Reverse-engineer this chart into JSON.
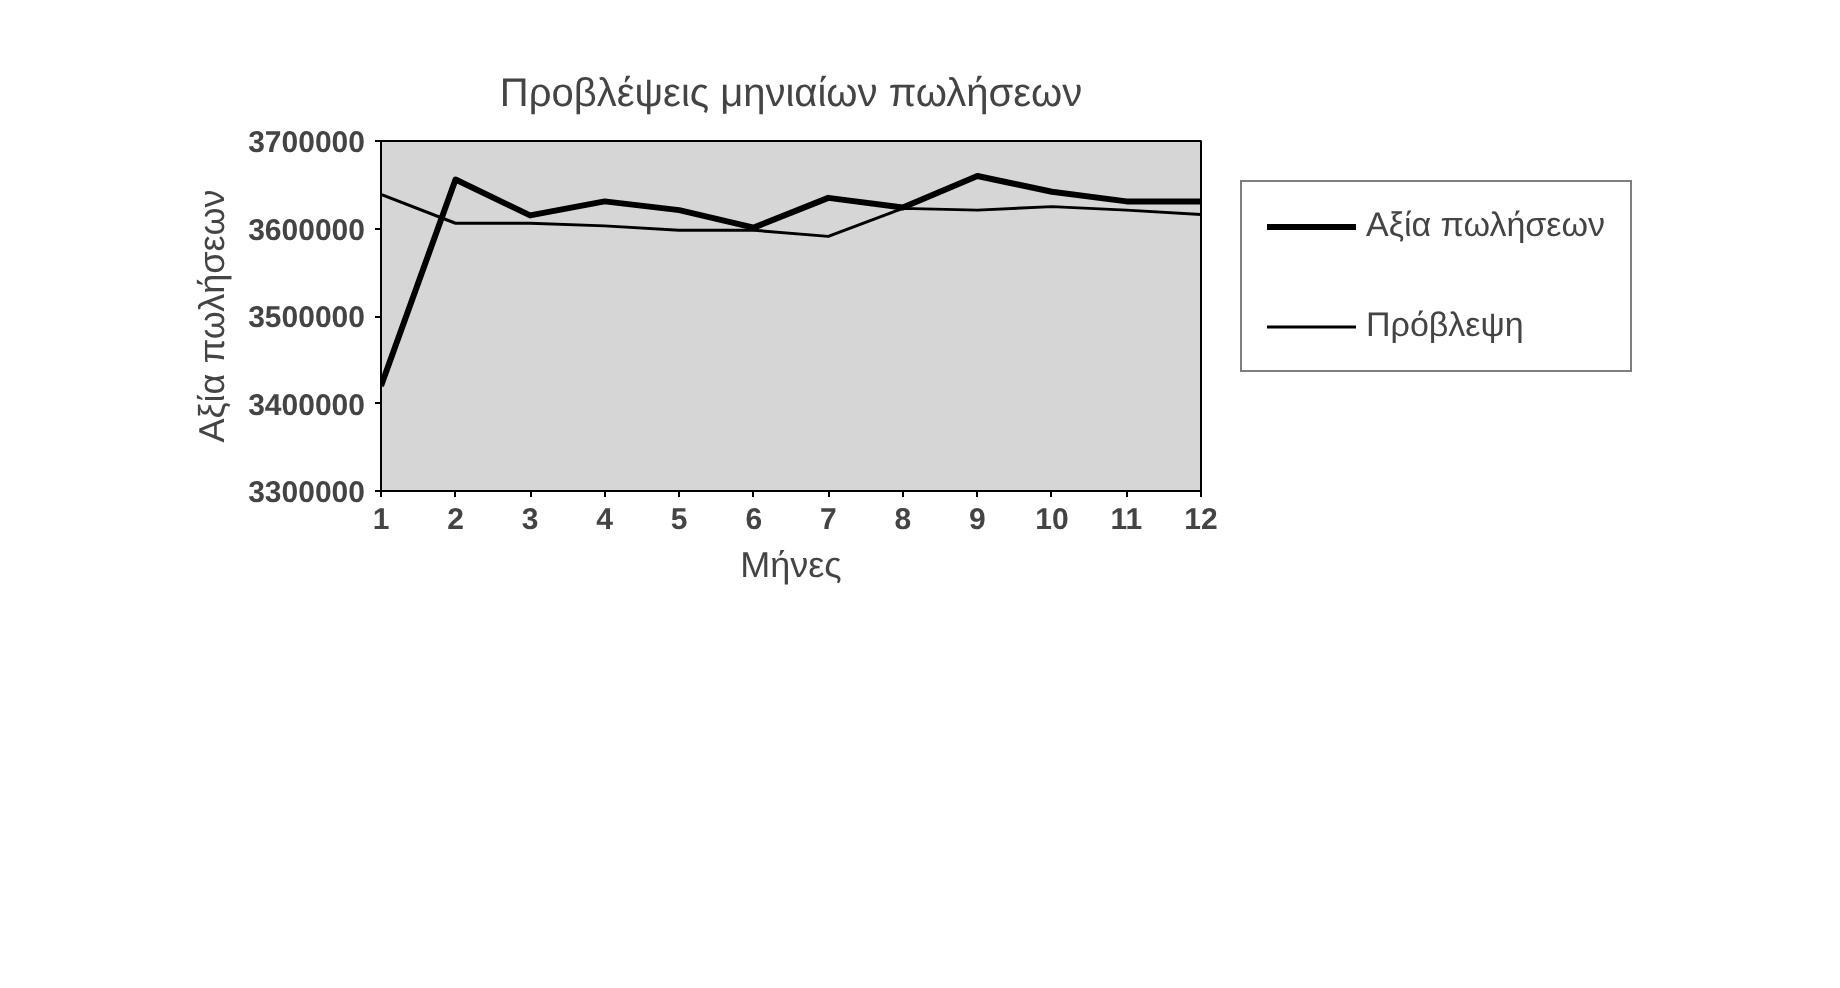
{
  "chart_data": {
    "type": "line",
    "title": "Προβλέψεις μηνιαίων πωλήσεων",
    "xlabel": "Μήνες",
    "ylabel": "Αξία πωλήσεων",
    "x": [
      1,
      2,
      3,
      4,
      5,
      6,
      7,
      8,
      9,
      10,
      11,
      12
    ],
    "series": [
      {
        "name": "Αξία πωλήσεων",
        "color": "#000000",
        "values": [
          3420000,
          3656000,
          3615000,
          3631000,
          3621000,
          3601000,
          3635000,
          3624000,
          3660000,
          3642000,
          3631000,
          3631000
        ]
      },
      {
        "name": "Πρόβλεψη",
        "color": "#000000",
        "values": [
          3639000,
          3606000,
          3606000,
          3603000,
          3598000,
          3598000,
          3591000,
          3623000,
          3621000,
          3625000,
          3621000,
          3616000
        ]
      }
    ],
    "xlim": [
      1,
      12
    ],
    "xticks": [
      1,
      2,
      3,
      4,
      5,
      6,
      7,
      8,
      9,
      10,
      11,
      12
    ],
    "ylim": [
      3300000,
      3700000
    ],
    "yticks": [
      3300000,
      3400000,
      3500000,
      3600000,
      3700000
    ],
    "grid": false,
    "legend": "right",
    "marker": "none",
    "line_style": "solid"
  }
}
